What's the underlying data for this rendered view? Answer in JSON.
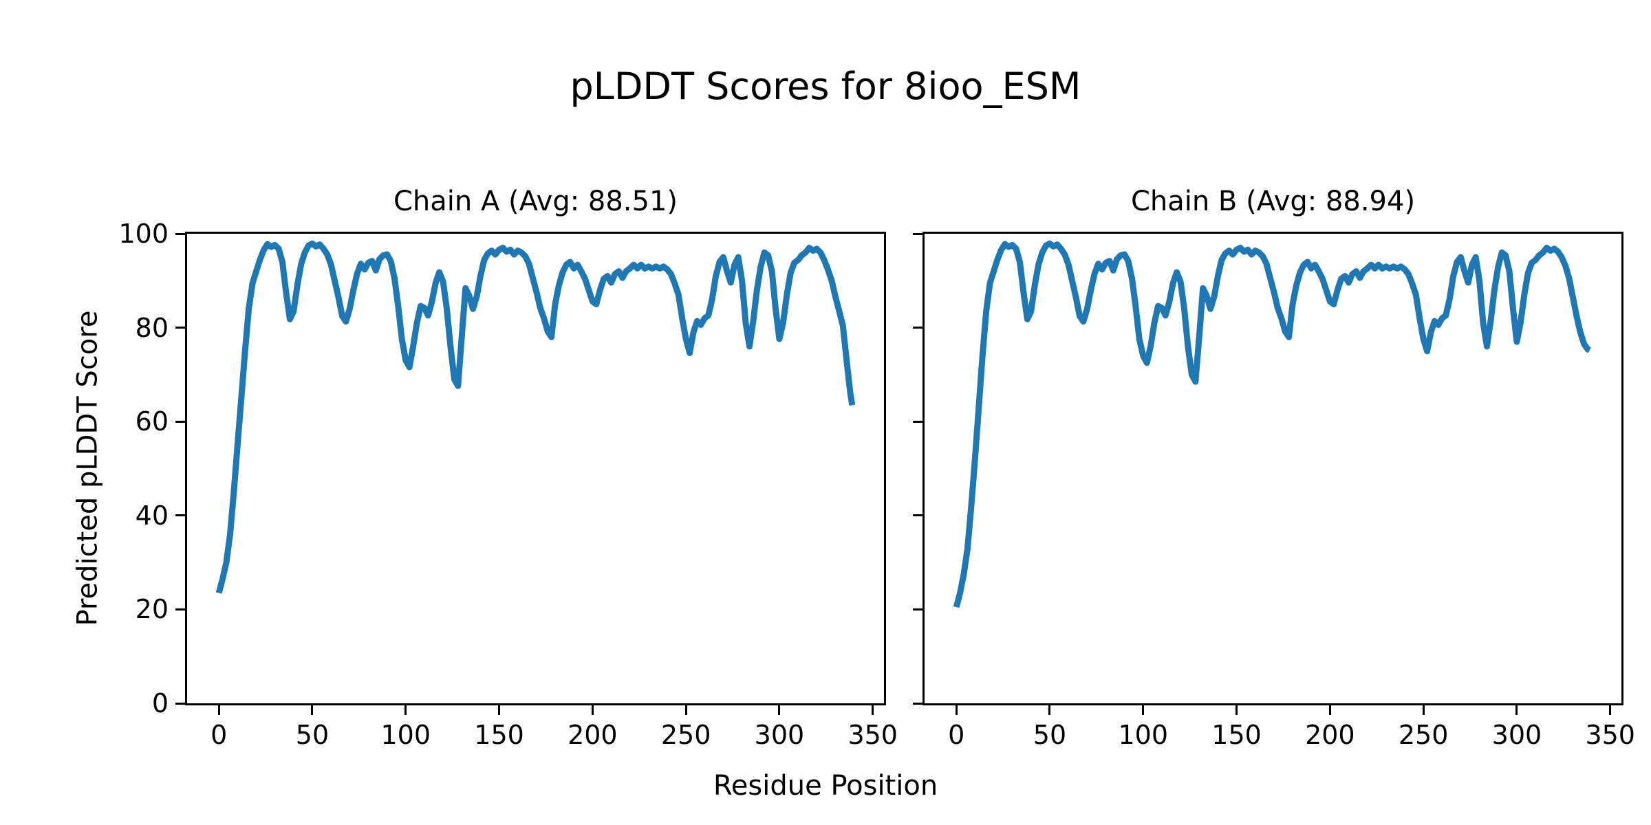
{
  "figure": {
    "suptitle": "pLDDT Scores for 8ioo_ESM",
    "xlabel": "Residue Position",
    "ylabel": "Predicted pLDDT Score",
    "background_color": "#ffffff",
    "line_color": "#1f77b4"
  },
  "chart_data": [
    {
      "type": "line",
      "title": "Chain A (Avg: 88.51)",
      "series_name": "Chain A",
      "average_plddt": 88.51,
      "color": "#1f77b4",
      "xlim": [
        -17,
        356
      ],
      "ylim": [
        0,
        100
      ],
      "xticks": [
        0,
        50,
        100,
        150,
        200,
        250,
        300,
        350
      ],
      "yticks": [
        0,
        20,
        40,
        60,
        80,
        100
      ],
      "ytick_labels_visible": true,
      "grid": false,
      "x": [
        0,
        2,
        4,
        6,
        8,
        10,
        12,
        14,
        16,
        18,
        20,
        22,
        24,
        26,
        28,
        30,
        32,
        34,
        36,
        38,
        40,
        42,
        44,
        46,
        48,
        50,
        52,
        54,
        56,
        58,
        60,
        62,
        64,
        66,
        68,
        70,
        72,
        74,
        76,
        78,
        80,
        82,
        84,
        86,
        88,
        90,
        92,
        94,
        96,
        98,
        100,
        102,
        104,
        106,
        108,
        110,
        112,
        114,
        116,
        118,
        120,
        122,
        124,
        126,
        128,
        130,
        132,
        134,
        136,
        138,
        140,
        142,
        144,
        146,
        148,
        150,
        152,
        154,
        156,
        158,
        160,
        162,
        164,
        166,
        168,
        170,
        172,
        174,
        176,
        178,
        180,
        182,
        184,
        186,
        188,
        190,
        192,
        194,
        196,
        198,
        200,
        202,
        204,
        206,
        208,
        210,
        212,
        214,
        216,
        218,
        220,
        222,
        224,
        226,
        228,
        230,
        232,
        234,
        236,
        238,
        240,
        242,
        244,
        246,
        248,
        250,
        252,
        254,
        256,
        258,
        260,
        262,
        264,
        266,
        268,
        270,
        272,
        274,
        276,
        278,
        280,
        282,
        284,
        286,
        288,
        290,
        292,
        294,
        296,
        298,
        300,
        302,
        304,
        306,
        308,
        310,
        312,
        314,
        316,
        318,
        320,
        322,
        324,
        326,
        328,
        330,
        332,
        334,
        336,
        338,
        339
      ],
      "y": [
        23.5,
        26.5,
        30,
        36,
        45,
        55,
        65,
        75,
        84,
        89.5,
        92,
        94.5,
        96.5,
        97.8,
        97.2,
        97.6,
        96.8,
        94,
        87.5,
        81.8,
        83.5,
        89,
        93.5,
        96,
        97.5,
        97.9,
        97.3,
        97.7,
        96.8,
        95.6,
        93.5,
        90,
        86.5,
        82.5,
        81.3,
        84,
        88,
        91.5,
        93.6,
        92.4,
        93.8,
        94.2,
        92.2,
        94.6,
        95.4,
        95.6,
        94.2,
        90.5,
        84.5,
        77.5,
        73,
        71.6,
        76,
        81,
        84.6,
        84.2,
        82.6,
        85.5,
        89.5,
        91.8,
        89.8,
        84,
        76,
        69,
        67.6,
        78,
        88.4,
        86.8,
        84,
        86.6,
        91,
        94.4,
        95.8,
        96.4,
        95.6,
        96.6,
        97,
        96.2,
        96.6,
        95.6,
        96.4,
        96,
        95.2,
        93.6,
        90.6,
        87.6,
        84.2,
        82,
        79.2,
        78,
        85,
        89,
        91.8,
        93.4,
        94,
        92.6,
        93.4,
        92,
        90.4,
        88,
        85.6,
        85,
        88,
        90.4,
        91,
        89.6,
        91.4,
        92,
        90.6,
        92,
        92.6,
        93.4,
        92.6,
        93.4,
        92.6,
        93,
        92.6,
        93,
        92.6,
        93,
        92.4,
        91.4,
        89.4,
        87,
        82,
        77.6,
        74.6,
        79,
        81.4,
        80.6,
        82,
        82.6,
        86,
        91,
        94,
        95,
        92,
        89.6,
        93.4,
        95,
        90,
        81,
        76,
        81.4,
        88,
        93,
        96,
        95.4,
        92,
        84,
        77.6,
        81,
        87,
        91.6,
        93.8,
        94.4,
        95.4,
        96,
        97,
        96.4,
        96.8,
        96,
        94.4,
        92.4,
        90,
        86.6,
        83.6,
        80.4,
        73,
        66,
        63.5
      ]
    },
    {
      "type": "line",
      "title": "Chain B (Avg: 88.94)",
      "series_name": "Chain B",
      "average_plddt": 88.94,
      "color": "#1f77b4",
      "xlim": [
        -17,
        356
      ],
      "ylim": [
        0,
        100
      ],
      "xticks": [
        0,
        50,
        100,
        150,
        200,
        250,
        300,
        350
      ],
      "yticks": [
        0,
        20,
        40,
        60,
        80,
        100
      ],
      "ytick_labels_visible": false,
      "grid": false,
      "x": [
        0,
        2,
        4,
        6,
        8,
        10,
        12,
        14,
        16,
        18,
        20,
        22,
        24,
        26,
        28,
        30,
        32,
        34,
        36,
        38,
        40,
        42,
        44,
        46,
        48,
        50,
        52,
        54,
        56,
        58,
        60,
        62,
        64,
        66,
        68,
        70,
        72,
        74,
        76,
        78,
        80,
        82,
        84,
        86,
        88,
        90,
        92,
        94,
        96,
        98,
        100,
        102,
        104,
        106,
        108,
        110,
        112,
        114,
        116,
        118,
        120,
        122,
        124,
        126,
        128,
        130,
        132,
        134,
        136,
        138,
        140,
        142,
        144,
        146,
        148,
        150,
        152,
        154,
        156,
        158,
        160,
        162,
        164,
        166,
        168,
        170,
        172,
        174,
        176,
        178,
        180,
        182,
        184,
        186,
        188,
        190,
        192,
        194,
        196,
        198,
        200,
        202,
        204,
        206,
        208,
        210,
        212,
        214,
        216,
        218,
        220,
        222,
        224,
        226,
        228,
        230,
        232,
        234,
        236,
        238,
        240,
        242,
        244,
        246,
        248,
        250,
        252,
        254,
        256,
        258,
        260,
        262,
        264,
        266,
        268,
        270,
        272,
        274,
        276,
        278,
        280,
        282,
        284,
        286,
        288,
        290,
        292,
        294,
        296,
        298,
        300,
        302,
        304,
        306,
        308,
        310,
        312,
        314,
        316,
        318,
        320,
        322,
        324,
        326,
        328,
        330,
        332,
        334,
        336,
        338,
        339
      ],
      "y": [
        20.5,
        23.5,
        27.5,
        33,
        42,
        52,
        63,
        74,
        83.5,
        89.5,
        92,
        94.5,
        96.5,
        97.8,
        97.2,
        97.6,
        96.8,
        94,
        87.5,
        81.8,
        83.5,
        89,
        93.5,
        96,
        97.5,
        97.9,
        97.3,
        97.7,
        96.8,
        95.6,
        93.5,
        90,
        86.5,
        82.5,
        81.3,
        84,
        88,
        91.5,
        93.6,
        92.4,
        93.8,
        94.2,
        92.2,
        94.6,
        95.4,
        95.6,
        94.2,
        90.5,
        84.5,
        77.5,
        74,
        72.5,
        76,
        81,
        84.6,
        84.2,
        82.6,
        85.5,
        89.5,
        91.8,
        89.8,
        84,
        76,
        70,
        68.5,
        78,
        88.4,
        86.8,
        84,
        86.6,
        91,
        94.4,
        95.8,
        96.4,
        95.6,
        96.6,
        97,
        96.2,
        96.6,
        95.6,
        96.4,
        96,
        95.2,
        93.6,
        90.6,
        87.6,
        84.2,
        82,
        79.2,
        78,
        85,
        89,
        91.8,
        93.4,
        94,
        92.6,
        93.4,
        92,
        90.4,
        88,
        85.6,
        85,
        88,
        90.4,
        91,
        89.6,
        91.4,
        92,
        90.6,
        92,
        92.6,
        93.4,
        92.6,
        93.4,
        92.6,
        93,
        92.6,
        93,
        92.6,
        93,
        92.4,
        91.4,
        89.4,
        87,
        82,
        77.6,
        75,
        79,
        81.4,
        80.6,
        82,
        82.6,
        86,
        91,
        94,
        95,
        92,
        89.6,
        93.4,
        95,
        90,
        81,
        76,
        81.4,
        88,
        93,
        96,
        95.4,
        92,
        84,
        77,
        81,
        87,
        91.6,
        93.8,
        94.4,
        95.4,
        96,
        97,
        96.4,
        96.8,
        96.2,
        95,
        93.2,
        90.5,
        86.5,
        82.5,
        79,
        76.5,
        75.4,
        75.2
      ]
    }
  ]
}
